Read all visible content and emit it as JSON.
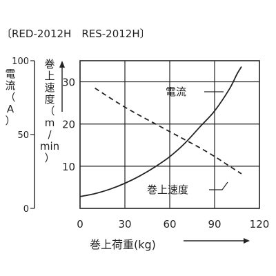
{
  "header": {
    "models": "〔RED-2012H　RES-2012H〕"
  },
  "chart_data": {
    "type": "line",
    "title": "",
    "xlabel": "巻上荷重(kg)",
    "x_ticks": [
      0,
      30,
      60,
      90,
      120
    ],
    "xlim": [
      0,
      120
    ],
    "left_axis": {
      "label_chars": [
        "電",
        "流",
        "（",
        "A",
        "）"
      ],
      "ticks": [
        0,
        50,
        100
      ],
      "ylim": [
        0,
        100
      ]
    },
    "right_axis": {
      "label_chars": [
        "巻",
        "上",
        "速",
        "度",
        "（",
        "m",
        "/",
        "min",
        "）"
      ],
      "ticks": [
        10,
        20,
        30
      ],
      "ylim": [
        0,
        35
      ]
    },
    "grid": true,
    "series": [
      {
        "name": "電流",
        "axis": "left",
        "style": "solid",
        "color": "#222222",
        "x": [
          0,
          10,
          20,
          30,
          40,
          50,
          60,
          70,
          80,
          90,
          100,
          105,
          108
        ],
        "y": [
          8,
          10,
          13,
          17,
          22,
          28,
          35,
          44,
          55,
          66,
          81,
          91,
          96
        ]
      },
      {
        "name": "巻上速度",
        "axis": "right",
        "style": "dashed",
        "color": "#222222",
        "x": [
          10,
          20,
          30,
          40,
          50,
          60,
          70,
          80,
          90,
          100,
          108
        ],
        "y": [
          28.5,
          26.2,
          24.0,
          22.0,
          20.1,
          18.2,
          16.3,
          14.4,
          12.3,
          10.0,
          8.2
        ]
      }
    ]
  }
}
